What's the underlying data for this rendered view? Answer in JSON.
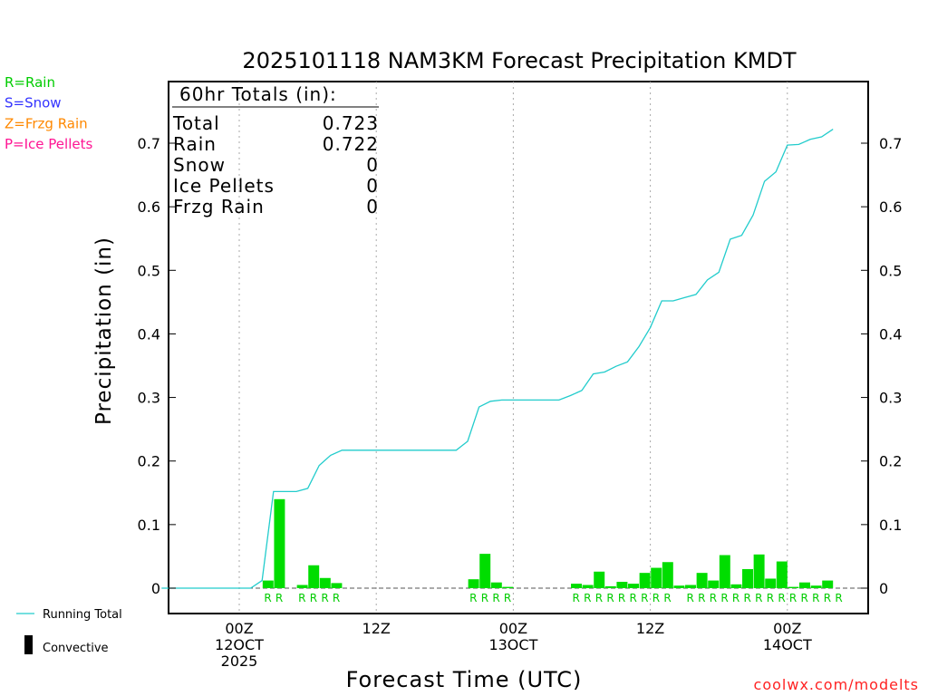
{
  "title": "2025101118 NAM3KM Forecast Precipitation KMDT",
  "legend_ptype": [
    {
      "label": "R=Rain",
      "color": "#00cc00"
    },
    {
      "label": "S=Snow",
      "color": "#3333ff"
    },
    {
      "label": "Z=Frzg Rain",
      "color": "#ff8800"
    },
    {
      "label": "P=Ice Pellets",
      "color": "#ff1493"
    }
  ],
  "totals": {
    "header": "60hr Totals (in):",
    "rows": [
      {
        "label": "Total",
        "value": "0.723"
      },
      {
        "label": "Rain",
        "value": "0.722"
      },
      {
        "label": "Snow",
        "value": "0"
      },
      {
        "label": "Ice Pellets",
        "value": "0"
      },
      {
        "label": "Frzg Rain",
        "value": "0"
      }
    ]
  },
  "bottom_legend": {
    "running_total": "Running Total",
    "convective": "Convective"
  },
  "footer": "coolwx.com/modelts",
  "colors": {
    "bar": "#00dd00",
    "line": "#22cccc",
    "ptype_rain": "#00cc00"
  },
  "chart_data": {
    "type": "bar",
    "xlabel": "Forecast Time (UTC)",
    "ylabel": "Precipitation (in)",
    "ylim": [
      -0.04,
      0.78
    ],
    "yticks": [
      "0",
      "0.1",
      "0.2",
      "0.3",
      "0.4",
      "0.5",
      "0.6",
      "0.7"
    ],
    "ytick_values": [
      0,
      0.1,
      0.2,
      0.3,
      0.4,
      0.5,
      0.6,
      0.7
    ],
    "x_unit": "forecast hour",
    "xlim": [
      -1.6,
      58
    ],
    "xticks": [
      {
        "hour": 6,
        "lines": [
          "00Z",
          "12OCT",
          "2025"
        ]
      },
      {
        "hour": 18,
        "lines": [
          "12Z"
        ]
      },
      {
        "hour": 30,
        "lines": [
          "00Z",
          "13OCT"
        ]
      },
      {
        "hour": 42,
        "lines": [
          "12Z"
        ]
      },
      {
        "hour": 54,
        "lines": [
          "00Z",
          "14OCT"
        ]
      }
    ],
    "grid": "dotted vertical at tick hours",
    "series": [
      {
        "name": "Running Total",
        "type": "line",
        "x": [
          -0.8,
          0,
          1,
          2,
          3,
          4,
          5,
          6,
          7,
          8,
          9,
          10,
          11,
          12,
          13,
          14,
          15,
          16,
          17,
          18,
          19,
          20,
          21,
          22,
          23,
          24,
          25,
          26,
          27,
          28,
          29,
          30,
          31,
          32,
          33,
          34,
          35,
          36,
          37,
          38,
          39,
          40,
          41,
          42,
          43,
          44,
          45,
          46,
          47,
          48,
          49,
          50,
          51,
          52,
          53,
          54,
          55,
          56,
          57,
          58
        ],
        "y": [
          0,
          0,
          0,
          0,
          0,
          0,
          0,
          0,
          0,
          0.012,
          0.152,
          0.152,
          0.152,
          0.157,
          0.193,
          0.209,
          0.217,
          0.217,
          0.217,
          0.217,
          0.217,
          0.217,
          0.217,
          0.217,
          0.217,
          0.217,
          0.217,
          0.231,
          0.285,
          0.294,
          0.296,
          0.296,
          0.296,
          0.296,
          0.296,
          0.296,
          0.303,
          0.311,
          0.337,
          0.34,
          0.349,
          0.356,
          0.38,
          0.41,
          0.452,
          0.452,
          0.457,
          0.462,
          0.485,
          0.497,
          0.549,
          0.555,
          0.587,
          0.64,
          0.655,
          0.697,
          0.698,
          0.706,
          0.71,
          0.722
        ]
      },
      {
        "name": "Convective",
        "type": "bar",
        "x": [
          9,
          10,
          12,
          13,
          14,
          15,
          27,
          28,
          29,
          30,
          36,
          37,
          38,
          39,
          40,
          41,
          42,
          43,
          44,
          45,
          46,
          47,
          48,
          49,
          50,
          51,
          52,
          53,
          54,
          55,
          56,
          57,
          58,
          59
        ],
        "y": [
          0.012,
          0.14,
          0.005,
          0.036,
          0.016,
          0.008,
          0.014,
          0.054,
          0.009,
          0.002,
          0.007,
          0.005,
          0.026,
          0.003,
          0.01,
          0.007,
          0.024,
          0.032,
          0.041,
          0.004,
          0.005,
          0.024,
          0.012,
          0.052,
          0.006,
          0.03,
          0.053,
          0.015,
          0.042,
          0.002,
          0.009,
          0.004,
          0.012,
          0.0
        ]
      }
    ],
    "ptype_markers": {
      "label": "R",
      "hours": [
        9,
        10,
        12,
        13,
        14,
        15,
        27,
        28,
        29,
        30,
        36,
        37,
        38,
        39,
        40,
        41,
        42,
        43,
        44,
        46,
        47,
        48,
        49,
        50,
        51,
        52,
        53,
        54,
        55,
        56,
        57,
        58,
        59
      ]
    }
  }
}
